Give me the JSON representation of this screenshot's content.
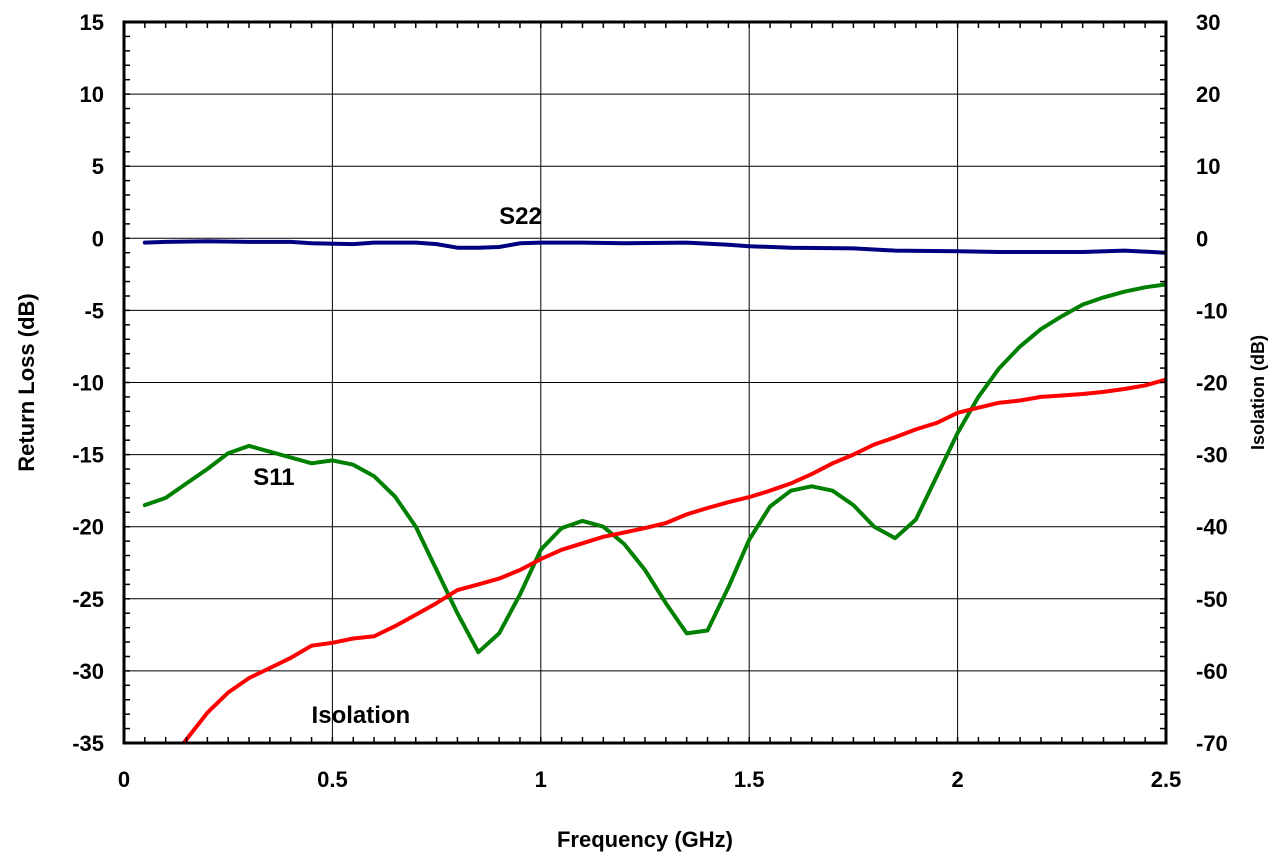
{
  "chart_data": {
    "type": "line",
    "xlabel": "Frequency (GHz)",
    "ylabel": "Return Loss (dB)",
    "ylabel_right": "Isolation (dB)",
    "xlim": [
      0,
      2.5
    ],
    "ylim": [
      -35,
      15
    ],
    "ylim_right": [
      -70,
      30
    ],
    "x_ticks": [
      "0",
      "0.5",
      "1",
      "1.5",
      "2",
      "2.5"
    ],
    "y_ticks": [
      "15",
      "10",
      "5",
      "0",
      "-5",
      "-10",
      "-15",
      "-20",
      "-25",
      "-30",
      "-35"
    ],
    "y_ticks_right": [
      "30",
      "20",
      "10",
      "0",
      "-10",
      "-20",
      "-30",
      "-40",
      "-50",
      "-60",
      "-70"
    ],
    "grid": true,
    "series": [
      {
        "name": "S22",
        "axis": "left",
        "color": "#000080",
        "points": [
          [
            0.05,
            -0.3
          ],
          [
            0.1,
            -0.25
          ],
          [
            0.2,
            -0.2
          ],
          [
            0.3,
            -0.25
          ],
          [
            0.4,
            -0.25
          ],
          [
            0.45,
            -0.35
          ],
          [
            0.55,
            -0.4
          ],
          [
            0.6,
            -0.3
          ],
          [
            0.7,
            -0.3
          ],
          [
            0.75,
            -0.4
          ],
          [
            0.8,
            -0.65
          ],
          [
            0.85,
            -0.65
          ],
          [
            0.9,
            -0.6
          ],
          [
            0.95,
            -0.35
          ],
          [
            1.0,
            -0.3
          ],
          [
            1.1,
            -0.3
          ],
          [
            1.2,
            -0.35
          ],
          [
            1.35,
            -0.3
          ],
          [
            1.45,
            -0.45
          ],
          [
            1.5,
            -0.55
          ],
          [
            1.6,
            -0.65
          ],
          [
            1.75,
            -0.7
          ],
          [
            1.85,
            -0.85
          ],
          [
            2.0,
            -0.9
          ],
          [
            2.1,
            -0.95
          ],
          [
            2.2,
            -0.95
          ],
          [
            2.3,
            -0.95
          ],
          [
            2.4,
            -0.85
          ],
          [
            2.5,
            -1.0
          ]
        ]
      },
      {
        "name": "S11",
        "axis": "left",
        "color": "#008000",
        "points": [
          [
            0.05,
            -18.5
          ],
          [
            0.1,
            -18.0
          ],
          [
            0.15,
            -17.0
          ],
          [
            0.2,
            -16.0
          ],
          [
            0.25,
            -14.9
          ],
          [
            0.3,
            -14.4
          ],
          [
            0.35,
            -14.8
          ],
          [
            0.4,
            -15.2
          ],
          [
            0.45,
            -15.6
          ],
          [
            0.5,
            -15.4
          ],
          [
            0.55,
            -15.7
          ],
          [
            0.6,
            -16.5
          ],
          [
            0.65,
            -17.9
          ],
          [
            0.7,
            -20.0
          ],
          [
            0.75,
            -23.0
          ],
          [
            0.8,
            -26.0
          ],
          [
            0.85,
            -28.7
          ],
          [
            0.9,
            -27.4
          ],
          [
            0.95,
            -24.7
          ],
          [
            1.0,
            -21.6
          ],
          [
            1.05,
            -20.1
          ],
          [
            1.1,
            -19.6
          ],
          [
            1.15,
            -20.0
          ],
          [
            1.2,
            -21.2
          ],
          [
            1.25,
            -23.0
          ],
          [
            1.3,
            -25.3
          ],
          [
            1.35,
            -27.4
          ],
          [
            1.4,
            -27.2
          ],
          [
            1.45,
            -24.2
          ],
          [
            1.5,
            -20.9
          ],
          [
            1.55,
            -18.6
          ],
          [
            1.6,
            -17.5
          ],
          [
            1.65,
            -17.2
          ],
          [
            1.7,
            -17.5
          ],
          [
            1.75,
            -18.5
          ],
          [
            1.8,
            -20.0
          ],
          [
            1.85,
            -20.8
          ],
          [
            1.9,
            -19.5
          ],
          [
            1.95,
            -16.5
          ],
          [
            2.0,
            -13.5
          ],
          [
            2.05,
            -11.0
          ],
          [
            2.1,
            -9.0
          ],
          [
            2.15,
            -7.5
          ],
          [
            2.2,
            -6.3
          ],
          [
            2.25,
            -5.4
          ],
          [
            2.3,
            -4.6
          ],
          [
            2.35,
            -4.1
          ],
          [
            2.4,
            -3.7
          ],
          [
            2.45,
            -3.4
          ],
          [
            2.5,
            -3.2
          ]
        ]
      },
      {
        "name": "Isolation",
        "axis": "right",
        "color": "#ff0000",
        "points": [
          [
            0.13,
            -71.0
          ],
          [
            0.15,
            -69.5
          ],
          [
            0.2,
            -65.8
          ],
          [
            0.25,
            -63.0
          ],
          [
            0.3,
            -61.0
          ],
          [
            0.35,
            -59.6
          ],
          [
            0.4,
            -58.2
          ],
          [
            0.45,
            -56.5
          ],
          [
            0.5,
            -56.1
          ],
          [
            0.55,
            -55.5
          ],
          [
            0.6,
            -55.2
          ],
          [
            0.65,
            -53.8
          ],
          [
            0.7,
            -52.2
          ],
          [
            0.75,
            -50.6
          ],
          [
            0.8,
            -48.8
          ],
          [
            0.85,
            -48.0
          ],
          [
            0.9,
            -47.2
          ],
          [
            0.95,
            -46.0
          ],
          [
            1.0,
            -44.5
          ],
          [
            1.05,
            -43.2
          ],
          [
            1.1,
            -42.3
          ],
          [
            1.15,
            -41.4
          ],
          [
            1.2,
            -40.8
          ],
          [
            1.25,
            -40.2
          ],
          [
            1.3,
            -39.5
          ],
          [
            1.35,
            -38.3
          ],
          [
            1.4,
            -37.4
          ],
          [
            1.45,
            -36.6
          ],
          [
            1.5,
            -35.9
          ],
          [
            1.55,
            -35.0
          ],
          [
            1.6,
            -34.0
          ],
          [
            1.65,
            -32.7
          ],
          [
            1.7,
            -31.2
          ],
          [
            1.75,
            -30.0
          ],
          [
            1.8,
            -28.6
          ],
          [
            1.85,
            -27.6
          ],
          [
            1.9,
            -26.5
          ],
          [
            1.95,
            -25.6
          ],
          [
            2.0,
            -24.2
          ],
          [
            2.05,
            -23.5
          ],
          [
            2.1,
            -22.8
          ],
          [
            2.15,
            -22.5
          ],
          [
            2.2,
            -22.0
          ],
          [
            2.25,
            -21.8
          ],
          [
            2.3,
            -21.6
          ],
          [
            2.35,
            -21.3
          ],
          [
            2.4,
            -20.9
          ],
          [
            2.45,
            -20.4
          ],
          [
            2.5,
            -19.6
          ]
        ]
      }
    ],
    "annotations": [
      {
        "text": "S22",
        "x": 0.9,
        "y": 1.0
      },
      {
        "text": "S11",
        "x": 0.31,
        "y": -17.1
      },
      {
        "text": "Isolation",
        "x": 0.45,
        "y": -33.6
      }
    ]
  }
}
